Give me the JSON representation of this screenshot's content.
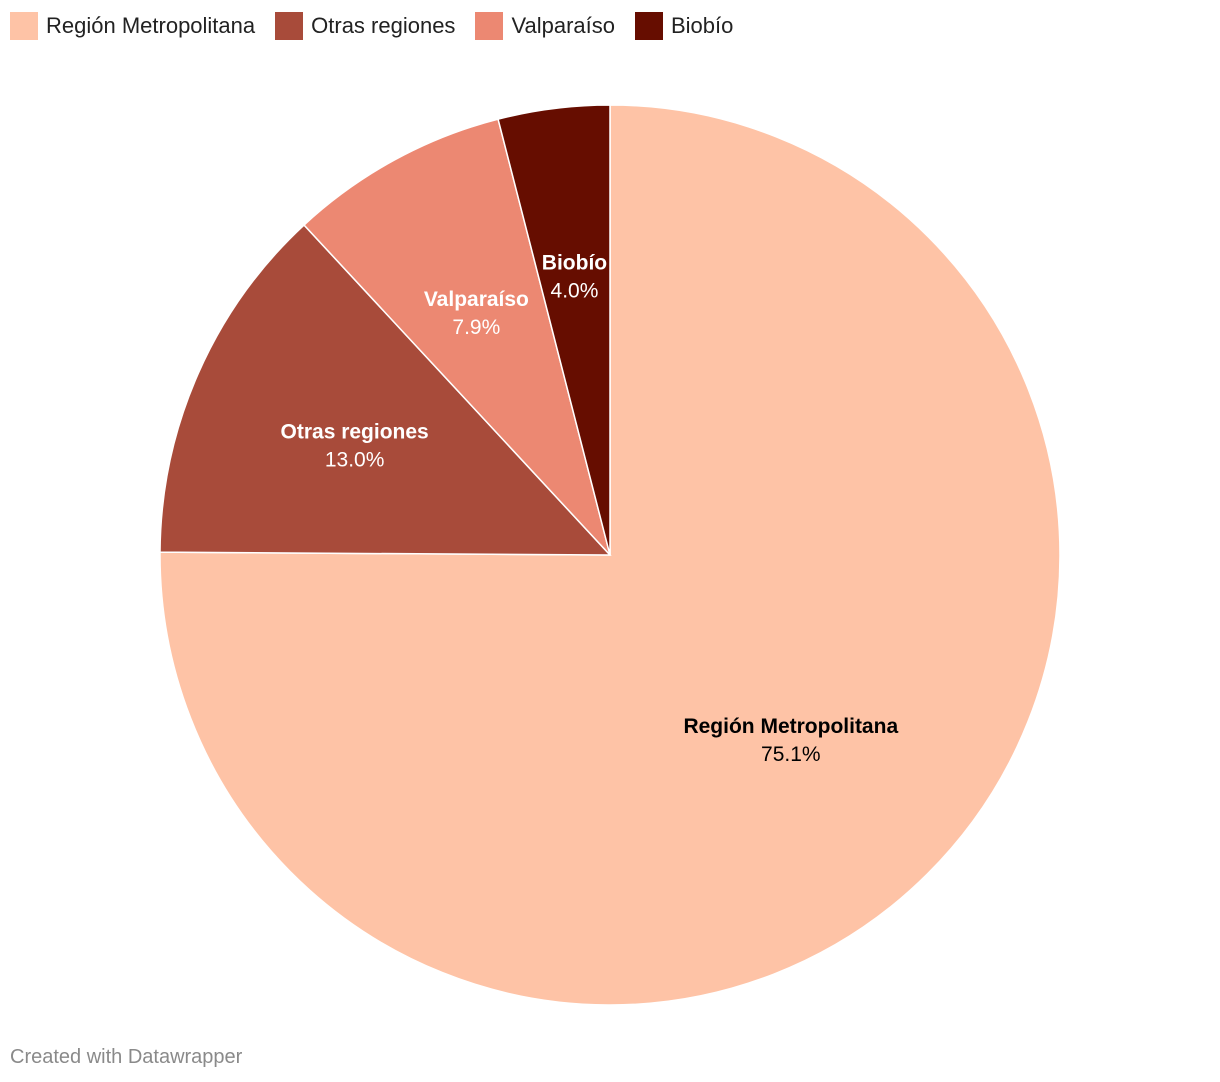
{
  "chart_data": {
    "type": "pie",
    "slices": [
      {
        "label": "Región Metropolitana",
        "value": 75.1,
        "value_label": "75.1%",
        "color": "#fec3a6",
        "text_color": "#000000"
      },
      {
        "label": "Otras regiones",
        "value": 13.0,
        "value_label": "13.0%",
        "color": "#a84b3a",
        "text_color": "#ffffff"
      },
      {
        "label": "Valparaíso",
        "value": 7.9,
        "value_label": "7.9%",
        "color": "#ec8872",
        "text_color": "#ffffff"
      },
      {
        "label": "Biobío",
        "value": 4.0,
        "value_label": "4.0%",
        "color": "#660d00",
        "text_color": "#ffffff"
      }
    ],
    "legend": {
      "position": "top-left",
      "items": [
        "Región Metropolitana",
        "Otras regiones",
        "Valparaíso",
        "Biobío"
      ]
    }
  },
  "footer": {
    "credit": "Created with Datawrapper"
  }
}
